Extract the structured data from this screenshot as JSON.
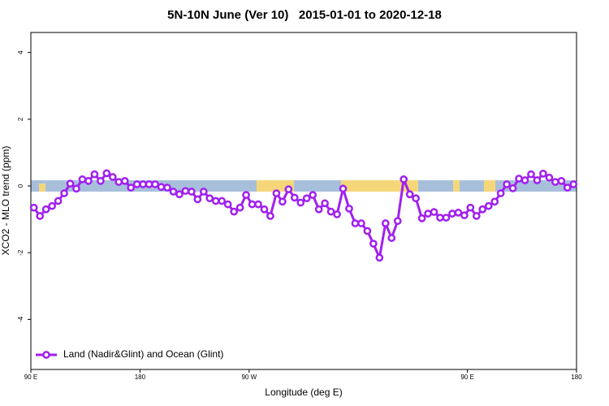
{
  "chart_data": {
    "type": "line",
    "title": "5N-10N June (Ver 10)   2015-01-01 to 2020-12-18",
    "x_label": "Longitude (deg E)",
    "y_label": "XCO2 - MLO trend (ppm)",
    "xlim": [
      90,
      540
    ],
    "ylim": [
      -5.5,
      4.6
    ],
    "xticks": [
      {
        "value": 90,
        "label": "90 E"
      },
      180,
      {
        "value": 270,
        "label": "90 W"
      },
      {
        "value": 450,
        "label": "90 E"
      },
      {
        "value": 540,
        "label": "180"
      }
    ],
    "yticks": [
      -4,
      -2,
      0,
      2,
      4
    ],
    "legend": "bottom-left",
    "x": [
      92.5,
      97.5,
      102.5,
      107.5,
      112.5,
      117.5,
      122.5,
      127.5,
      132.5,
      137.5,
      142.5,
      147.5,
      152.5,
      157.5,
      162.5,
      167.5,
      172.5,
      177.5,
      182.5,
      187.5,
      192.5,
      197.5,
      202.5,
      207.5,
      212.5,
      217.5,
      222.5,
      227.5,
      232.5,
      237.5,
      242.5,
      247.5,
      252.5,
      257.5,
      262.5,
      267.5,
      272.5,
      277.5,
      282.5,
      287.5,
      292.5,
      297.5,
      302.5,
      307.5,
      312.5,
      317.5,
      322.5,
      327.5,
      332.5,
      337.5,
      342.5,
      347.5,
      352.5,
      357.5,
      362.5,
      367.5,
      372.5,
      377.5,
      382.5,
      387.5,
      392.5,
      397.5,
      402.5,
      407.5,
      412.5,
      417.5,
      422.5,
      427.5,
      432.5,
      437.5,
      442.5,
      447.5,
      452.5,
      457.5,
      462.5,
      467.5,
      472.5,
      477.5,
      482.5,
      487.5,
      492.5,
      497.5,
      502.5,
      507.5,
      512.5,
      517.5,
      522.5,
      527.5,
      532.5,
      537.5
    ],
    "series": [
      {
        "name": "Land (Nadir&Glint) and Ocean (Glint)",
        "color": "#a020f0",
        "values": [
          -0.65,
          -0.9,
          -0.7,
          -0.6,
          -0.45,
          -0.22,
          0.07,
          -0.08,
          0.2,
          0.15,
          0.35,
          0.15,
          0.38,
          0.27,
          0.12,
          0.15,
          -0.05,
          0.05,
          0.05,
          0.05,
          0.05,
          -0.03,
          -0.05,
          -0.17,
          -0.25,
          -0.15,
          -0.17,
          -0.4,
          -0.17,
          -0.37,
          -0.45,
          -0.45,
          -0.55,
          -0.77,
          -0.65,
          -0.27,
          -0.55,
          -0.55,
          -0.7,
          -0.9,
          -0.22,
          -0.47,
          -0.1,
          -0.35,
          -0.5,
          -0.37,
          -0.27,
          -0.7,
          -0.52,
          -0.77,
          -0.85,
          -0.08,
          -0.68,
          -1.12,
          -1.12,
          -1.35,
          -1.73,
          -2.15,
          -1.12,
          -1.56,
          -1.05,
          0.2,
          -0.25,
          -0.37,
          -0.97,
          -0.83,
          -0.78,
          -0.95,
          -0.95,
          -0.83,
          -0.8,
          -0.88,
          -0.65,
          -0.9,
          -0.7,
          -0.6,
          -0.47,
          -0.22,
          0.05,
          -0.07,
          0.22,
          0.17,
          0.35,
          0.17,
          0.37,
          0.25,
          0.12,
          0.15,
          -0.05,
          0.05
        ]
      }
    ]
  }
}
